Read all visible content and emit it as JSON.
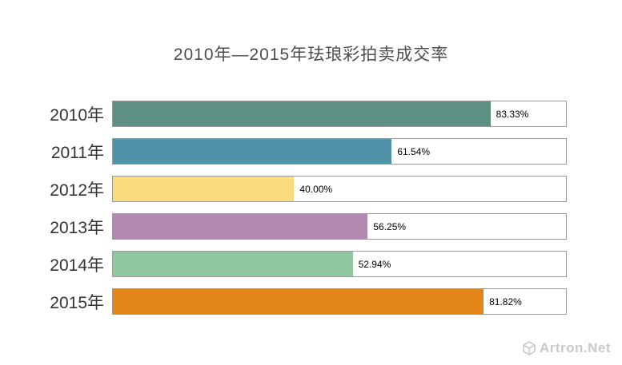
{
  "title": "2010年—2015年珐琅彩拍卖成交率",
  "watermark": {
    "text": "Artron.Net",
    "icon": "cube-logo-icon",
    "color": "#c9c9c9"
  },
  "chart_data": {
    "type": "bar",
    "orientation": "horizontal",
    "title": "2010年—2015年珐琅彩拍卖成交率",
    "categories": [
      "2010年",
      "2011年",
      "2012年",
      "2013年",
      "2014年",
      "2015年"
    ],
    "values": [
      83.33,
      61.54,
      40.0,
      56.25,
      52.94,
      81.82
    ],
    "value_labels": [
      "83.33%",
      "61.54%",
      "40.00%",
      "56.25%",
      "52.94%",
      "81.82%"
    ],
    "bar_colors": [
      "#5d9083",
      "#4f93a8",
      "#f9dc7d",
      "#b28ab2",
      "#90c7a1",
      "#e2861a"
    ],
    "xlim": [
      0,
      100
    ],
    "grid": false,
    "legend": "none",
    "track_border_color": "#9a9a9a",
    "track_background": "#ffffff"
  }
}
